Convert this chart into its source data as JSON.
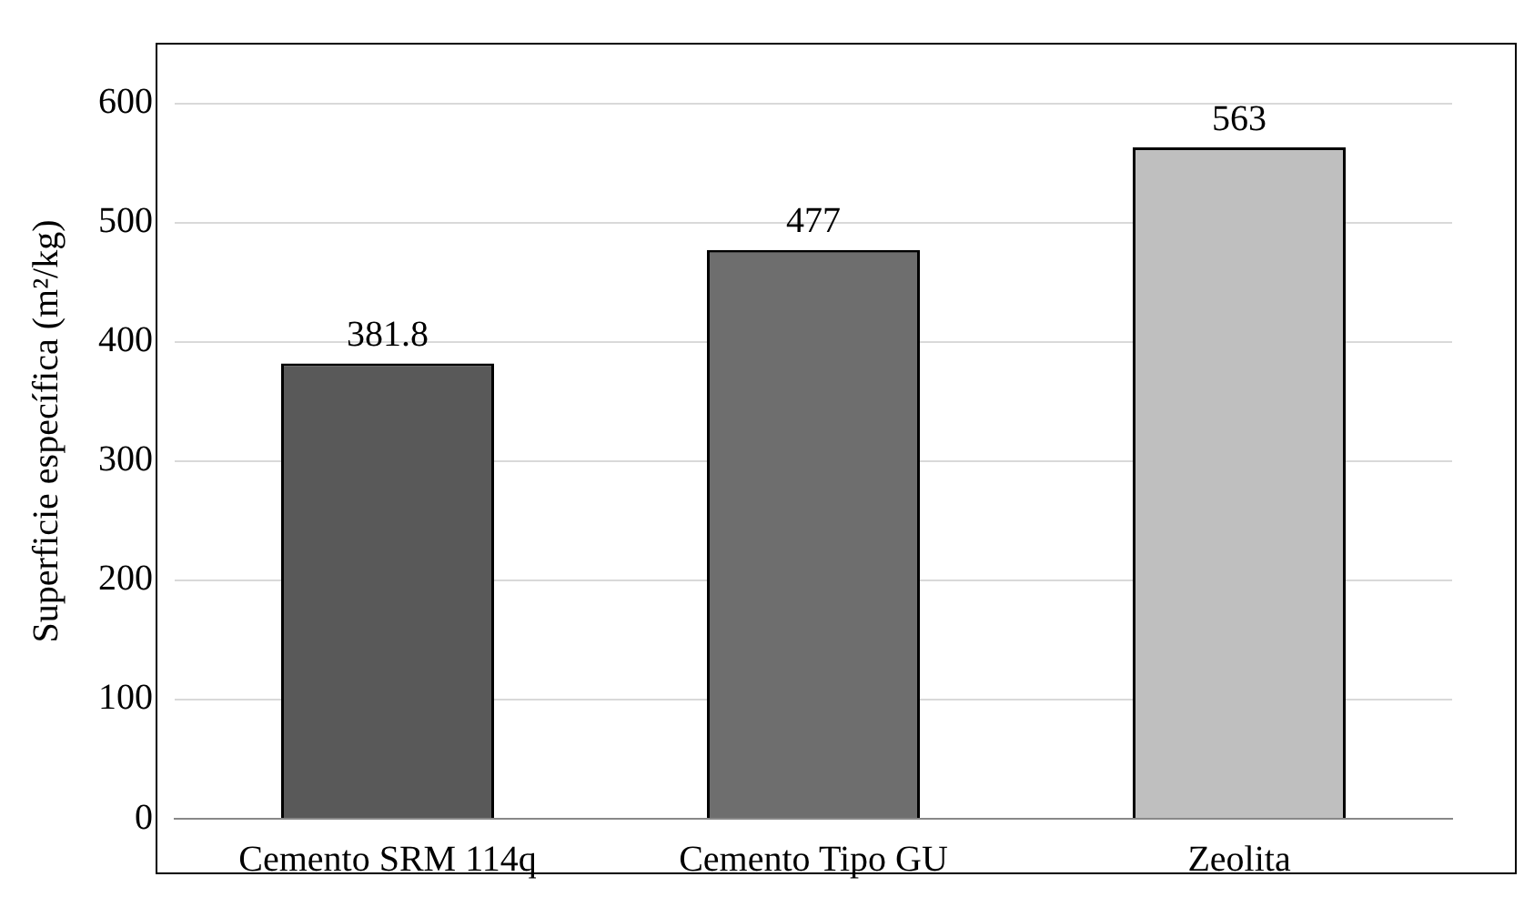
{
  "chart_data": {
    "type": "bar",
    "ylabel": "Superficie específica (m²/kg)",
    "categories": [
      "Cemento SRM 114q",
      "Cemento Tipo GU",
      "Zeolita"
    ],
    "values": [
      381.8,
      477,
      563
    ],
    "colors": [
      "#595959",
      "#6e6e6e",
      "#bfbfbf"
    ],
    "ylim": [
      0,
      650
    ],
    "yticks": [
      0,
      100,
      200,
      300,
      400,
      500,
      600
    ],
    "grid": "y",
    "data_labels": true
  }
}
